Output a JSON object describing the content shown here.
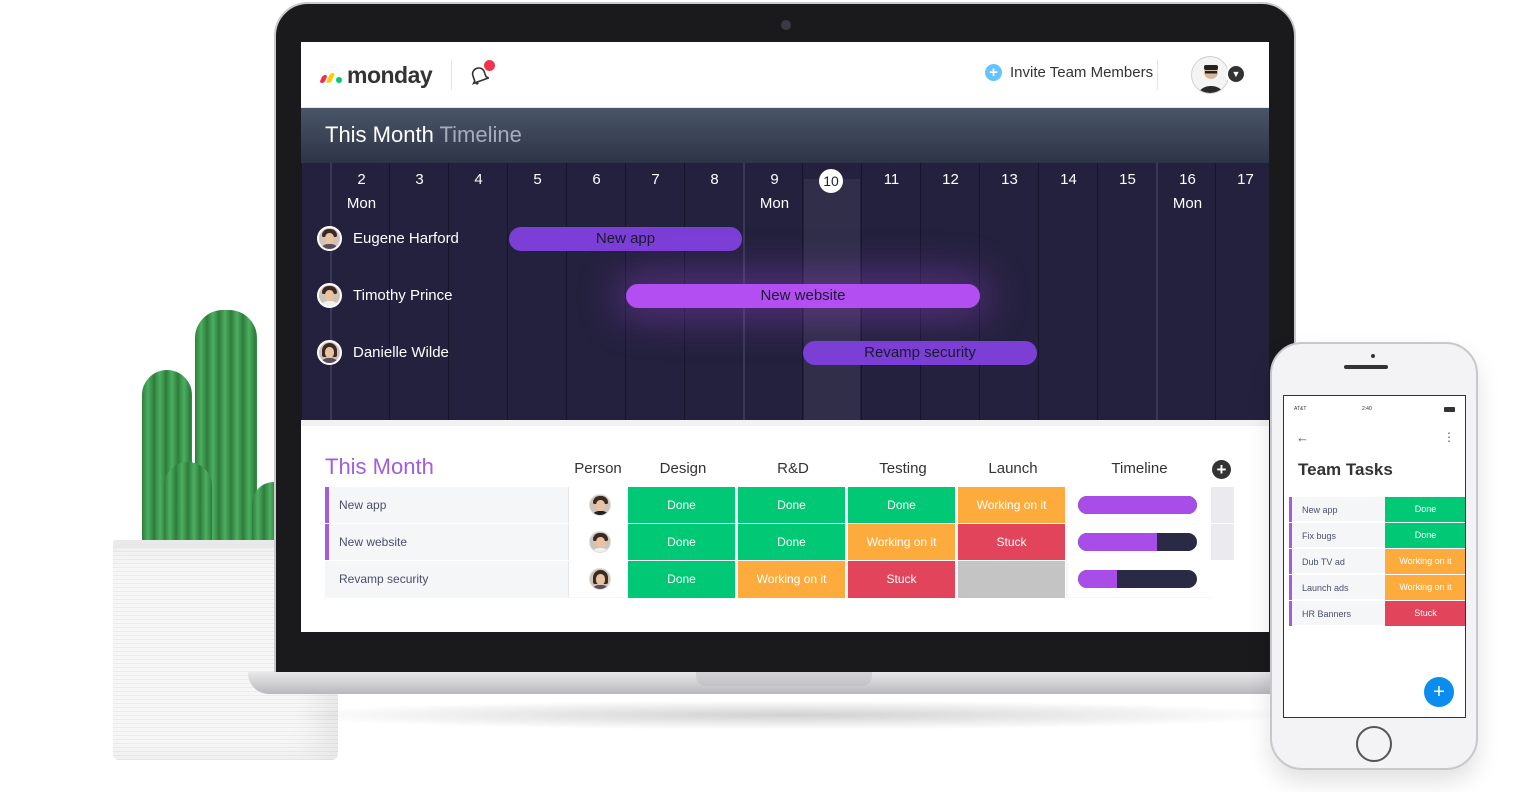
{
  "app": {
    "logo_text": "monday"
  },
  "topbar": {
    "invite_label": "Invite Team Members",
    "invite_icon": "plus-circle-icon"
  },
  "timeline": {
    "title_main": "This Month",
    "title_sub": "Timeline",
    "days": [
      {
        "num": "2",
        "dow": "Mon"
      },
      {
        "num": "3",
        "dow": ""
      },
      {
        "num": "4",
        "dow": ""
      },
      {
        "num": "5",
        "dow": ""
      },
      {
        "num": "6",
        "dow": ""
      },
      {
        "num": "7",
        "dow": ""
      },
      {
        "num": "8",
        "dow": ""
      },
      {
        "num": "9",
        "dow": "Mon"
      },
      {
        "num": "10",
        "dow": ""
      },
      {
        "num": "11",
        "dow": ""
      },
      {
        "num": "12",
        "dow": ""
      },
      {
        "num": "13",
        "dow": ""
      },
      {
        "num": "14",
        "dow": ""
      },
      {
        "num": "15",
        "dow": ""
      },
      {
        "num": "16",
        "dow": "Mon"
      },
      {
        "num": "17",
        "dow": ""
      }
    ],
    "today": "10",
    "people": [
      "Eugene Harford",
      "Timothy Prince",
      "Danielle Wilde"
    ],
    "bars": [
      "New app",
      "New website",
      "Revamp security"
    ]
  },
  "board": {
    "title": "This Month",
    "columns": [
      "Person",
      "Design",
      "R&D",
      "Testing",
      "Launch",
      "Timeline"
    ],
    "rows": [
      {
        "name": "New app",
        "design": "Done",
        "rd": "Done",
        "testing": "Done",
        "launch": "Working on it",
        "progress": 1.0
      },
      {
        "name": "New website",
        "design": "Done",
        "rd": "Done",
        "testing": "Working on it",
        "launch": "Stuck",
        "progress": 0.66
      },
      {
        "name": "Revamp security",
        "design": "Done",
        "rd": "Working on it",
        "testing": "Stuck",
        "launch": "",
        "progress": 0.33
      }
    ]
  },
  "phone": {
    "carrier": "AT&T",
    "time": "2:40",
    "title": "Team Tasks",
    "rows": [
      {
        "name": "New app",
        "status": "Done"
      },
      {
        "name": "Fix bugs",
        "status": "Done"
      },
      {
        "name": "Dub TV ad",
        "status": "Working on it"
      },
      {
        "name": "Launch ads",
        "status": "Working on it"
      },
      {
        "name": "HR Banners",
        "status": "Stuck"
      }
    ],
    "fab_label": "+"
  },
  "colors": {
    "done": "#00c875",
    "working": "#fdab3d",
    "stuck": "#e2445c",
    "empty": "#c4c4c4",
    "accent": "#a25ddc"
  }
}
